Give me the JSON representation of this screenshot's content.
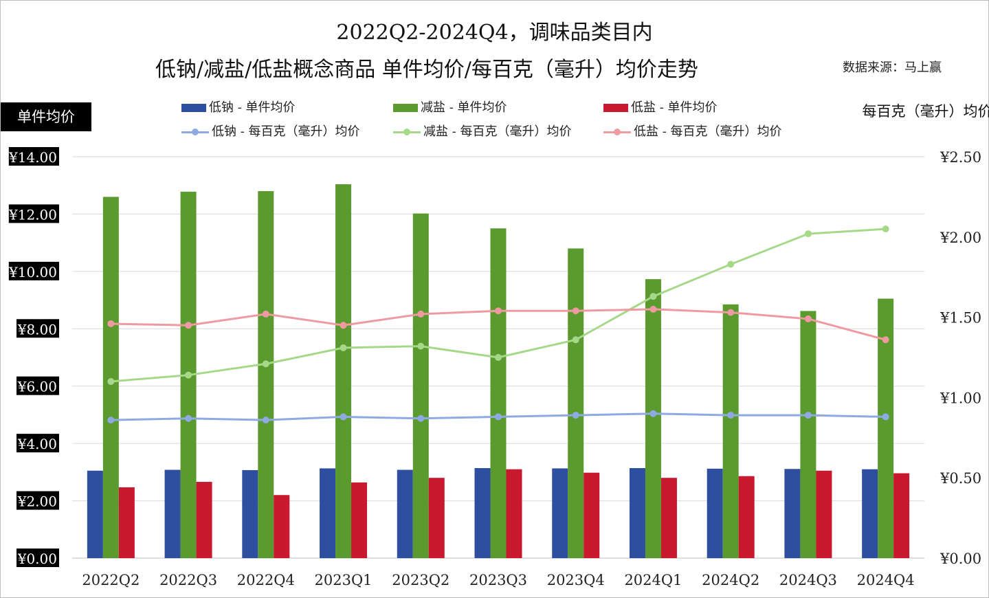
{
  "title_line1": "2022Q2-2024Q4，调味品类目内",
  "title_line2": "低钠/减盐/低盐概念商品 单件均价/每百克（毫升）均价走势",
  "source": "数据来源：马上赢",
  "left_axis_title": "单件均价",
  "right_axis_title": "每百克（毫升）均价",
  "colors": {
    "bar_low_sodium": "#2E4FA0",
    "bar_reduced_salt": "#5B9A2E",
    "bar_low_salt": "#C8192E",
    "line_low_sodium": "#8FAAE3",
    "line_reduced_salt": "#A6D88A",
    "line_low_salt": "#EE9AA0"
  },
  "chart_data": {
    "type": "bar+line",
    "categories": [
      "2022Q2",
      "2022Q3",
      "2022Q4",
      "2023Q1",
      "2023Q2",
      "2023Q3",
      "2023Q4",
      "2024Q1",
      "2024Q2",
      "2024Q3",
      "2024Q4"
    ],
    "left_axis": {
      "min": 0,
      "max": 14,
      "step": 2,
      "tick_labels": [
        "¥0.00",
        "¥2.00",
        "¥4.00",
        "¥6.00",
        "¥8.00",
        "¥10.00",
        "¥12.00",
        "¥14.00"
      ]
    },
    "right_axis": {
      "min": 0,
      "max": 2.5,
      "step": 0.5,
      "tick_labels": [
        "¥0.00",
        "¥0.50",
        "¥1.00",
        "¥1.50",
        "¥2.00",
        "¥2.50"
      ]
    },
    "bar_series": [
      {
        "name": "低钠 - 单件均价",
        "color_key": "bar_low_sodium",
        "values": [
          3.05,
          3.08,
          3.07,
          3.13,
          3.08,
          3.14,
          3.13,
          3.14,
          3.12,
          3.11,
          3.1
        ]
      },
      {
        "name": "减盐 - 单件均价",
        "color_key": "bar_reduced_salt",
        "values": [
          12.6,
          12.78,
          12.8,
          13.04,
          12.02,
          11.5,
          10.8,
          9.73,
          8.85,
          8.62,
          9.05
        ]
      },
      {
        "name": "低盐 - 单件均价",
        "color_key": "bar_low_salt",
        "values": [
          2.47,
          2.66,
          2.2,
          2.64,
          2.8,
          3.1,
          2.98,
          2.8,
          2.86,
          3.05,
          2.96
        ]
      }
    ],
    "line_series": [
      {
        "name": "低钠 - 每百克（毫升）均价",
        "color_key": "line_low_sodium",
        "values": [
          0.86,
          0.87,
          0.86,
          0.88,
          0.87,
          0.88,
          0.89,
          0.9,
          0.89,
          0.89,
          0.88
        ]
      },
      {
        "name": "减盐 - 每百克（毫升）均价",
        "color_key": "line_reduced_salt",
        "values": [
          1.1,
          1.14,
          1.21,
          1.31,
          1.32,
          1.25,
          1.36,
          1.63,
          1.83,
          2.02,
          2.05
        ]
      },
      {
        "name": "低盐 - 每百克（毫升）均价",
        "color_key": "line_low_salt",
        "values": [
          1.46,
          1.45,
          1.52,
          1.45,
          1.52,
          1.54,
          1.54,
          1.55,
          1.53,
          1.49,
          1.36
        ]
      }
    ]
  }
}
